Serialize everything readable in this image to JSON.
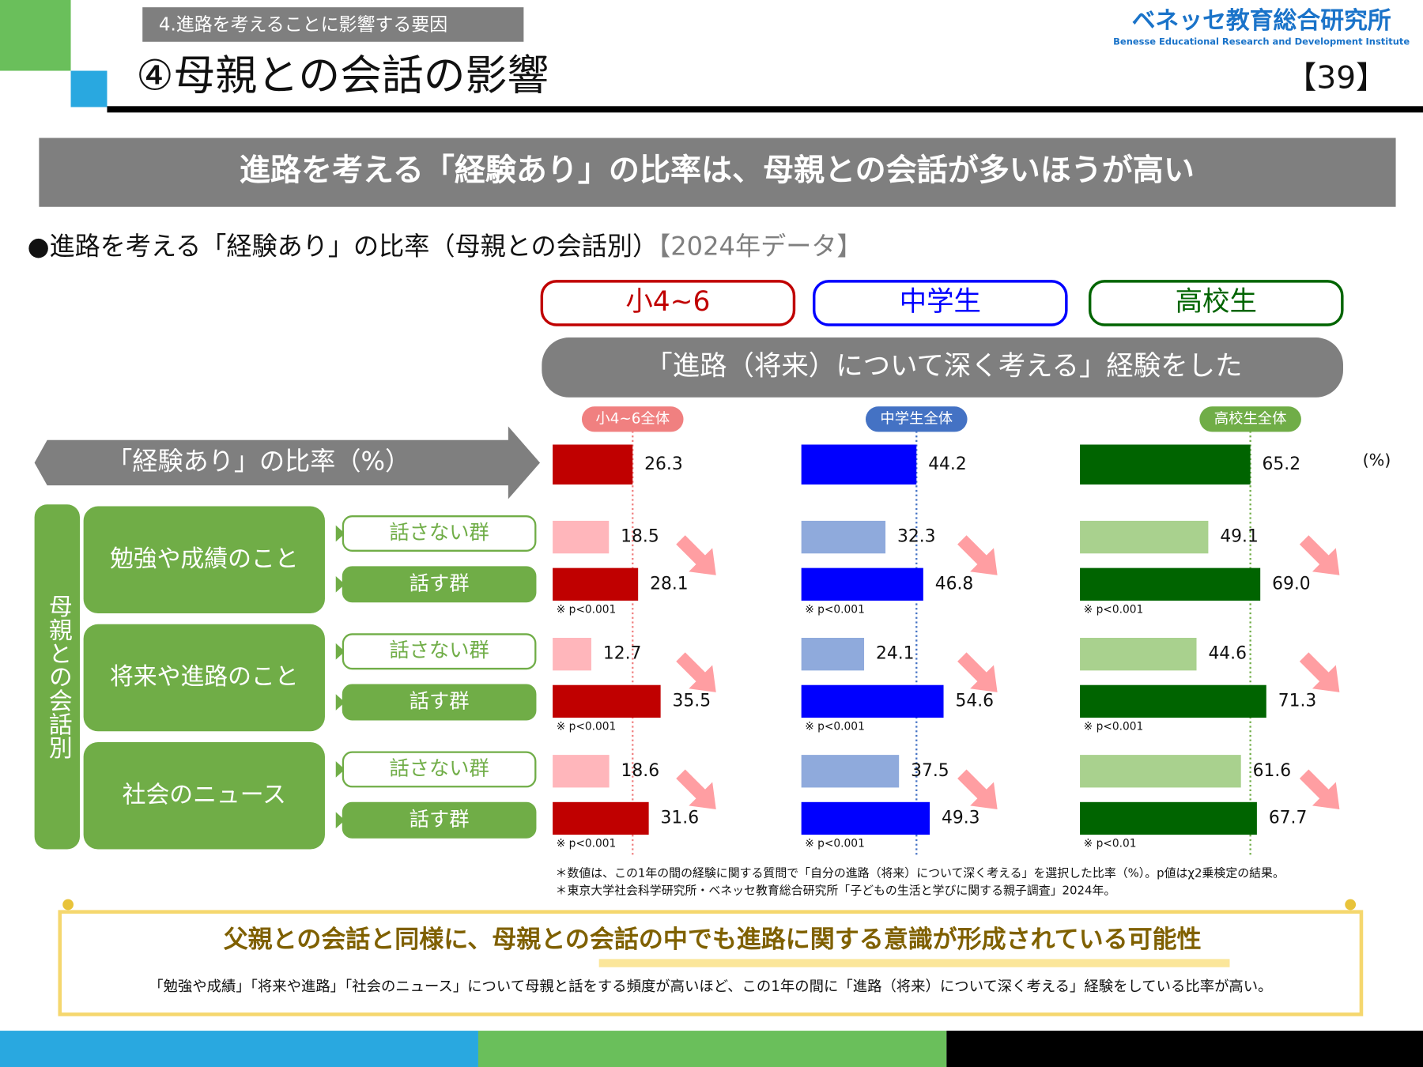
{
  "header": {
    "section": "4.進路を考えることに影響する要因",
    "title": "④母親との会話の影響",
    "logo": "ベネッセ教育総合研究所",
    "logo_en": "Benesse  Educational Research and Development Institute",
    "page": "【39】"
  },
  "banner": "進路を考える「経験あり」の比率は、母親との会話が多いほうが高い",
  "subtitle": "●進路を考える「経験あり」の比率（母親との会話別）",
  "subtitle_year": "【2024年データ】",
  "question": "「進路（将来）について深く考える」経験をした",
  "rows": {
    "overall": "「経験あり」の比率（%）",
    "group_title": "母親との会話別",
    "topics": [
      "勉強や成績のこと",
      "将来や進路のこと",
      "社会のニュース"
    ],
    "groups": [
      "話さない群",
      "話す群"
    ]
  },
  "unit": "(%)",
  "chart_data": [
    {
      "type": "bar",
      "orientation": "horizontal",
      "title": "小4~6",
      "title_color": "#c00000",
      "reference_label": "小4~6全体",
      "reference_color": "#f08080",
      "values": [
        26.3,
        18.5,
        28.1,
        12.7,
        35.5,
        18.6,
        31.6
      ],
      "value_labels": [
        "26.3",
        "18.5",
        "28.1",
        "12.7",
        "35.5",
        "18.6",
        "31.6"
      ],
      "colors": [
        "#c00000",
        "#ffb6bb",
        "#c00000",
        "#ffb6bb",
        "#c00000",
        "#ffb6bb",
        "#c00000"
      ],
      "p_labels": [
        "※ p<0.001",
        "※ p<0.001",
        "※ p<0.001"
      ]
    },
    {
      "type": "bar",
      "orientation": "horizontal",
      "title": "中学生",
      "title_color": "#0000ff",
      "reference_label": "中学生全体",
      "reference_color": "#4472c4",
      "values": [
        44.2,
        32.3,
        46.8,
        24.1,
        54.6,
        37.5,
        49.3
      ],
      "value_labels": [
        "44.2",
        "32.3",
        "46.8",
        "24.1",
        "54.6",
        "37.5",
        "49.3"
      ],
      "colors": [
        "#0000ff",
        "#8faadc",
        "#0000ff",
        "#8faadc",
        "#0000ff",
        "#8faadc",
        "#0000ff"
      ],
      "p_labels": [
        "※ p<0.001",
        "※ p<0.001",
        "※ p<0.001"
      ]
    },
    {
      "type": "bar",
      "orientation": "horizontal",
      "title": "高校生",
      "title_color": "#006400",
      "reference_label": "高校生全体",
      "reference_color": "#70ad47",
      "values": [
        65.2,
        49.1,
        69.0,
        44.6,
        71.3,
        61.6,
        67.7
      ],
      "value_labels": [
        "65.2",
        "49.1",
        "69.0",
        "44.6",
        "71.3",
        "61.6",
        "67.7"
      ],
      "colors": [
        "#006400",
        "#a9d18e",
        "#006400",
        "#a9d18e",
        "#006400",
        "#a9d18e",
        "#006400"
      ],
      "p_labels": [
        "※ p<0.001",
        "※ p<0.001",
        "※ p<0.01"
      ]
    }
  ],
  "notes": [
    "＊数値は、この1年の間の経験に関する質問で「自分の進路（将来）について深く考える」を選択した比率（%）。p値はχ2乗検定の結果。",
    "＊東京大学社会科学研究所・ベネッセ教育総合研究所「子どもの生活と学びに関する親子調査」2024年。"
  ],
  "summary": {
    "title": "父親との会話と同様に、母親との会話の中でも進路に関する意識が形成されている可能性",
    "body": "「勉強や成績」「将来や進路」「社会のニュース」について母親と話をする頻度が高いほど、この1年の間に「進路（将来）について深く考える」経験をしている比率が高い。"
  }
}
